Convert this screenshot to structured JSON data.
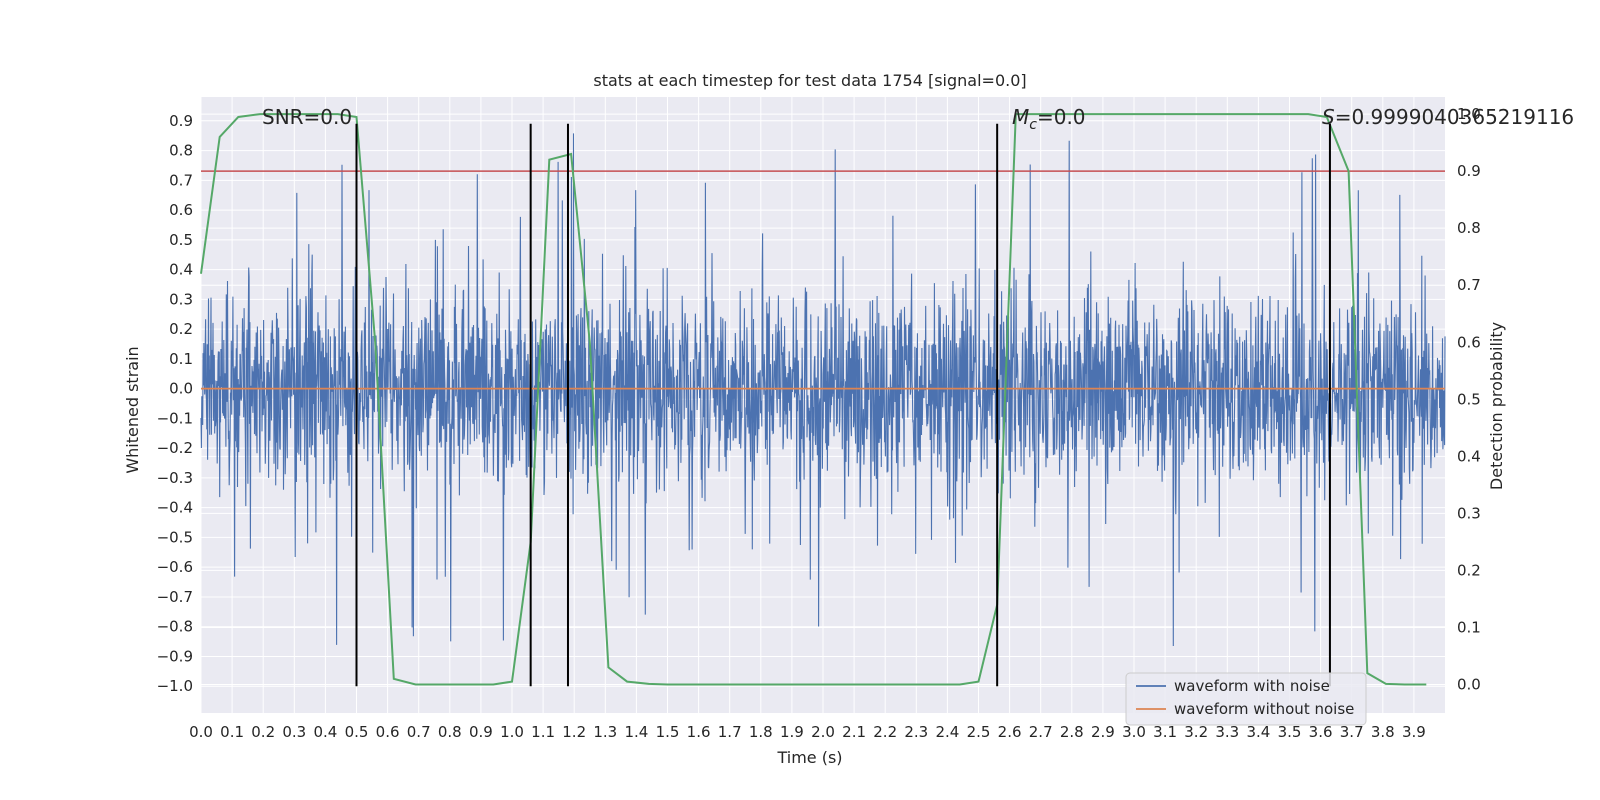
{
  "chart_data": {
    "type": "line",
    "title": "stats at each timestep for test data 1754 [signal=0.0]",
    "xlabel": "Time (s)",
    "ylabel": "Whitened strain",
    "ylabel_right": "Detection probability",
    "xlim": [
      0.0,
      4.0
    ],
    "ylim": [
      -1.09,
      0.98
    ],
    "ylim_right": [
      -0.05,
      1.03
    ],
    "x_ticks": [
      "0.0",
      "0.1",
      "0.2",
      "0.3",
      "0.4",
      "0.5",
      "0.6",
      "0.7",
      "0.8",
      "0.9",
      "1.0",
      "1.1",
      "1.2",
      "1.3",
      "1.4",
      "1.5",
      "1.6",
      "1.7",
      "1.8",
      "1.9",
      "2.0",
      "2.1",
      "2.2",
      "2.3",
      "2.4",
      "2.5",
      "2.6",
      "2.7",
      "2.8",
      "2.9",
      "3.0",
      "3.1",
      "3.2",
      "3.3",
      "3.4",
      "3.5",
      "3.6",
      "3.7",
      "3.8",
      "3.9"
    ],
    "y_ticks": [
      "0.9",
      "0.8",
      "0.7",
      "0.6",
      "0.5",
      "0.4",
      "0.3",
      "0.2",
      "0.1",
      "0.0",
      "−0.1",
      "−0.2",
      "−0.3",
      "−0.4",
      "−0.5",
      "−0.6",
      "−0.7",
      "−0.8",
      "−0.9",
      "−1.0"
    ],
    "y_ticks_right": [
      "1.0",
      "0.9",
      "0.8",
      "0.7",
      "0.6",
      "0.5",
      "0.4",
      "0.3",
      "0.2",
      "0.1",
      "0.0"
    ],
    "grid": true,
    "legend_position": "lower-right",
    "series": [
      {
        "name": "waveform with noise",
        "color": "#4c72b0",
        "style": "noise",
        "amplitude_typical": 0.3,
        "amplitude_peak": 0.88
      },
      {
        "name": "waveform without noise",
        "color": "#dd8452",
        "x": [
          0.0,
          4.0
        ],
        "y": [
          0.0,
          0.0
        ]
      },
      {
        "color": "#55a868",
        "axis": "right",
        "x": [
          0.0,
          0.06,
          0.12,
          0.19,
          0.25,
          0.31,
          0.37,
          0.44,
          0.5,
          0.56,
          0.62,
          0.69,
          0.75,
          0.81,
          0.87,
          0.94,
          1.0,
          1.06,
          1.12,
          1.19,
          1.25,
          1.31,
          1.37,
          1.44,
          1.5,
          1.56,
          1.62,
          2.44,
          2.5,
          2.56,
          2.62,
          2.69,
          3.56,
          3.62,
          3.69,
          3.75,
          3.81,
          3.87,
          3.94
        ],
        "y": [
          0.72,
          0.96,
          0.995,
          1.0,
          1.0,
          1.0,
          1.0,
          1.0,
          0.995,
          0.6,
          0.01,
          0.0,
          0.0,
          0.0,
          0.0,
          0.0,
          0.005,
          0.25,
          0.92,
          0.93,
          0.6,
          0.03,
          0.005,
          0.001,
          0.0,
          0.0,
          0.0,
          0.0,
          0.005,
          0.14,
          1.0,
          1.0,
          1.0,
          0.995,
          0.9,
          0.02,
          0.001,
          0.0,
          0.0
        ]
      }
    ],
    "threshold_line": {
      "y_right": 0.9,
      "color": "#c44e52"
    },
    "vertical_lines": [
      0.5,
      1.06,
      1.18,
      2.56,
      3.63
    ],
    "vertical_lines_range": [
      -1.0,
      0.89
    ],
    "annotations": [
      {
        "text": "SNR=0.0",
        "x": 0.2
      },
      {
        "text_main": "M",
        "text_sub": "c",
        "text_rest": "=0.0",
        "x": 2.6
      },
      {
        "text_main": "S",
        "text_rest": "=0.9999040365219116",
        "x": 3.63
      }
    ]
  }
}
